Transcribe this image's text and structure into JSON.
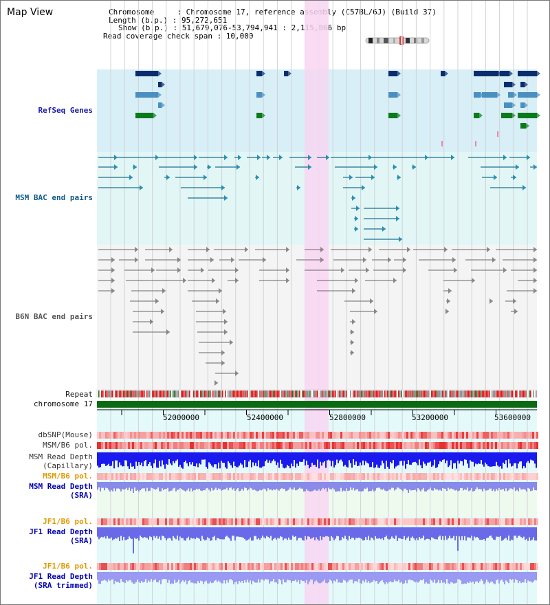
{
  "view": {
    "title": "Map View"
  },
  "info": {
    "chromosome_line": "Chromosome     : Chromosome 17, reference assembly (C57BL/6J) (Build 37)",
    "length_line": "Length (b.p.) : 95,272,651",
    "show_line": "Show (b.p.) : 51,679,076-53,794,941 : 2,115,866 bp",
    "span_line": "Read coverage check span : 10,000"
  },
  "tracks": {
    "refseq": "RefSeq Genes",
    "msm_bac": "MSM BAC end pairs",
    "b6n_bac": "B6N BAC end pairs",
    "repeat": "Repeat",
    "chromosome": "chromosome 17",
    "dbsnp": "dbSNP(Mouse)",
    "msm_b6_pol_cap": "MSM/B6 pol.",
    "msm_depth_cap_1": "MSM Read Depth",
    "msm_depth_cap_2": "(Capillary)",
    "msm_b6_pol_sra": "MSM/B6 pol.",
    "msm_depth_sra_1": "MSM Read Depth",
    "msm_depth_sra_2": "(SRA)",
    "jf1_b6_pol": "JF1/B6 pol.",
    "jf1_depth_sra_1": "JF1 Read Depth",
    "jf1_depth_sra_2": "(SRA)",
    "jf1_b6_pol_2": "JF1/B6 pol.",
    "jf1_depth_trim_1": "JF1 Read Depth",
    "jf1_depth_trim_2": "(SRA trimmed)"
  },
  "axis": {
    "ticks": [
      "52000000",
      "52400000",
      "52800000",
      "53200000",
      "53600000"
    ]
  },
  "colors": {
    "refseq_bg": "#d8eff8",
    "msm_bg": "#e2f6f6",
    "b6n_bg": "#f4f4f4",
    "highlight": "#f8d6f2",
    "dark_gene": "#0a2d6e",
    "mid_gene": "#4a8fbf",
    "green_gene": "#0a7a1a",
    "chromosome": "#0a6b12"
  }
}
